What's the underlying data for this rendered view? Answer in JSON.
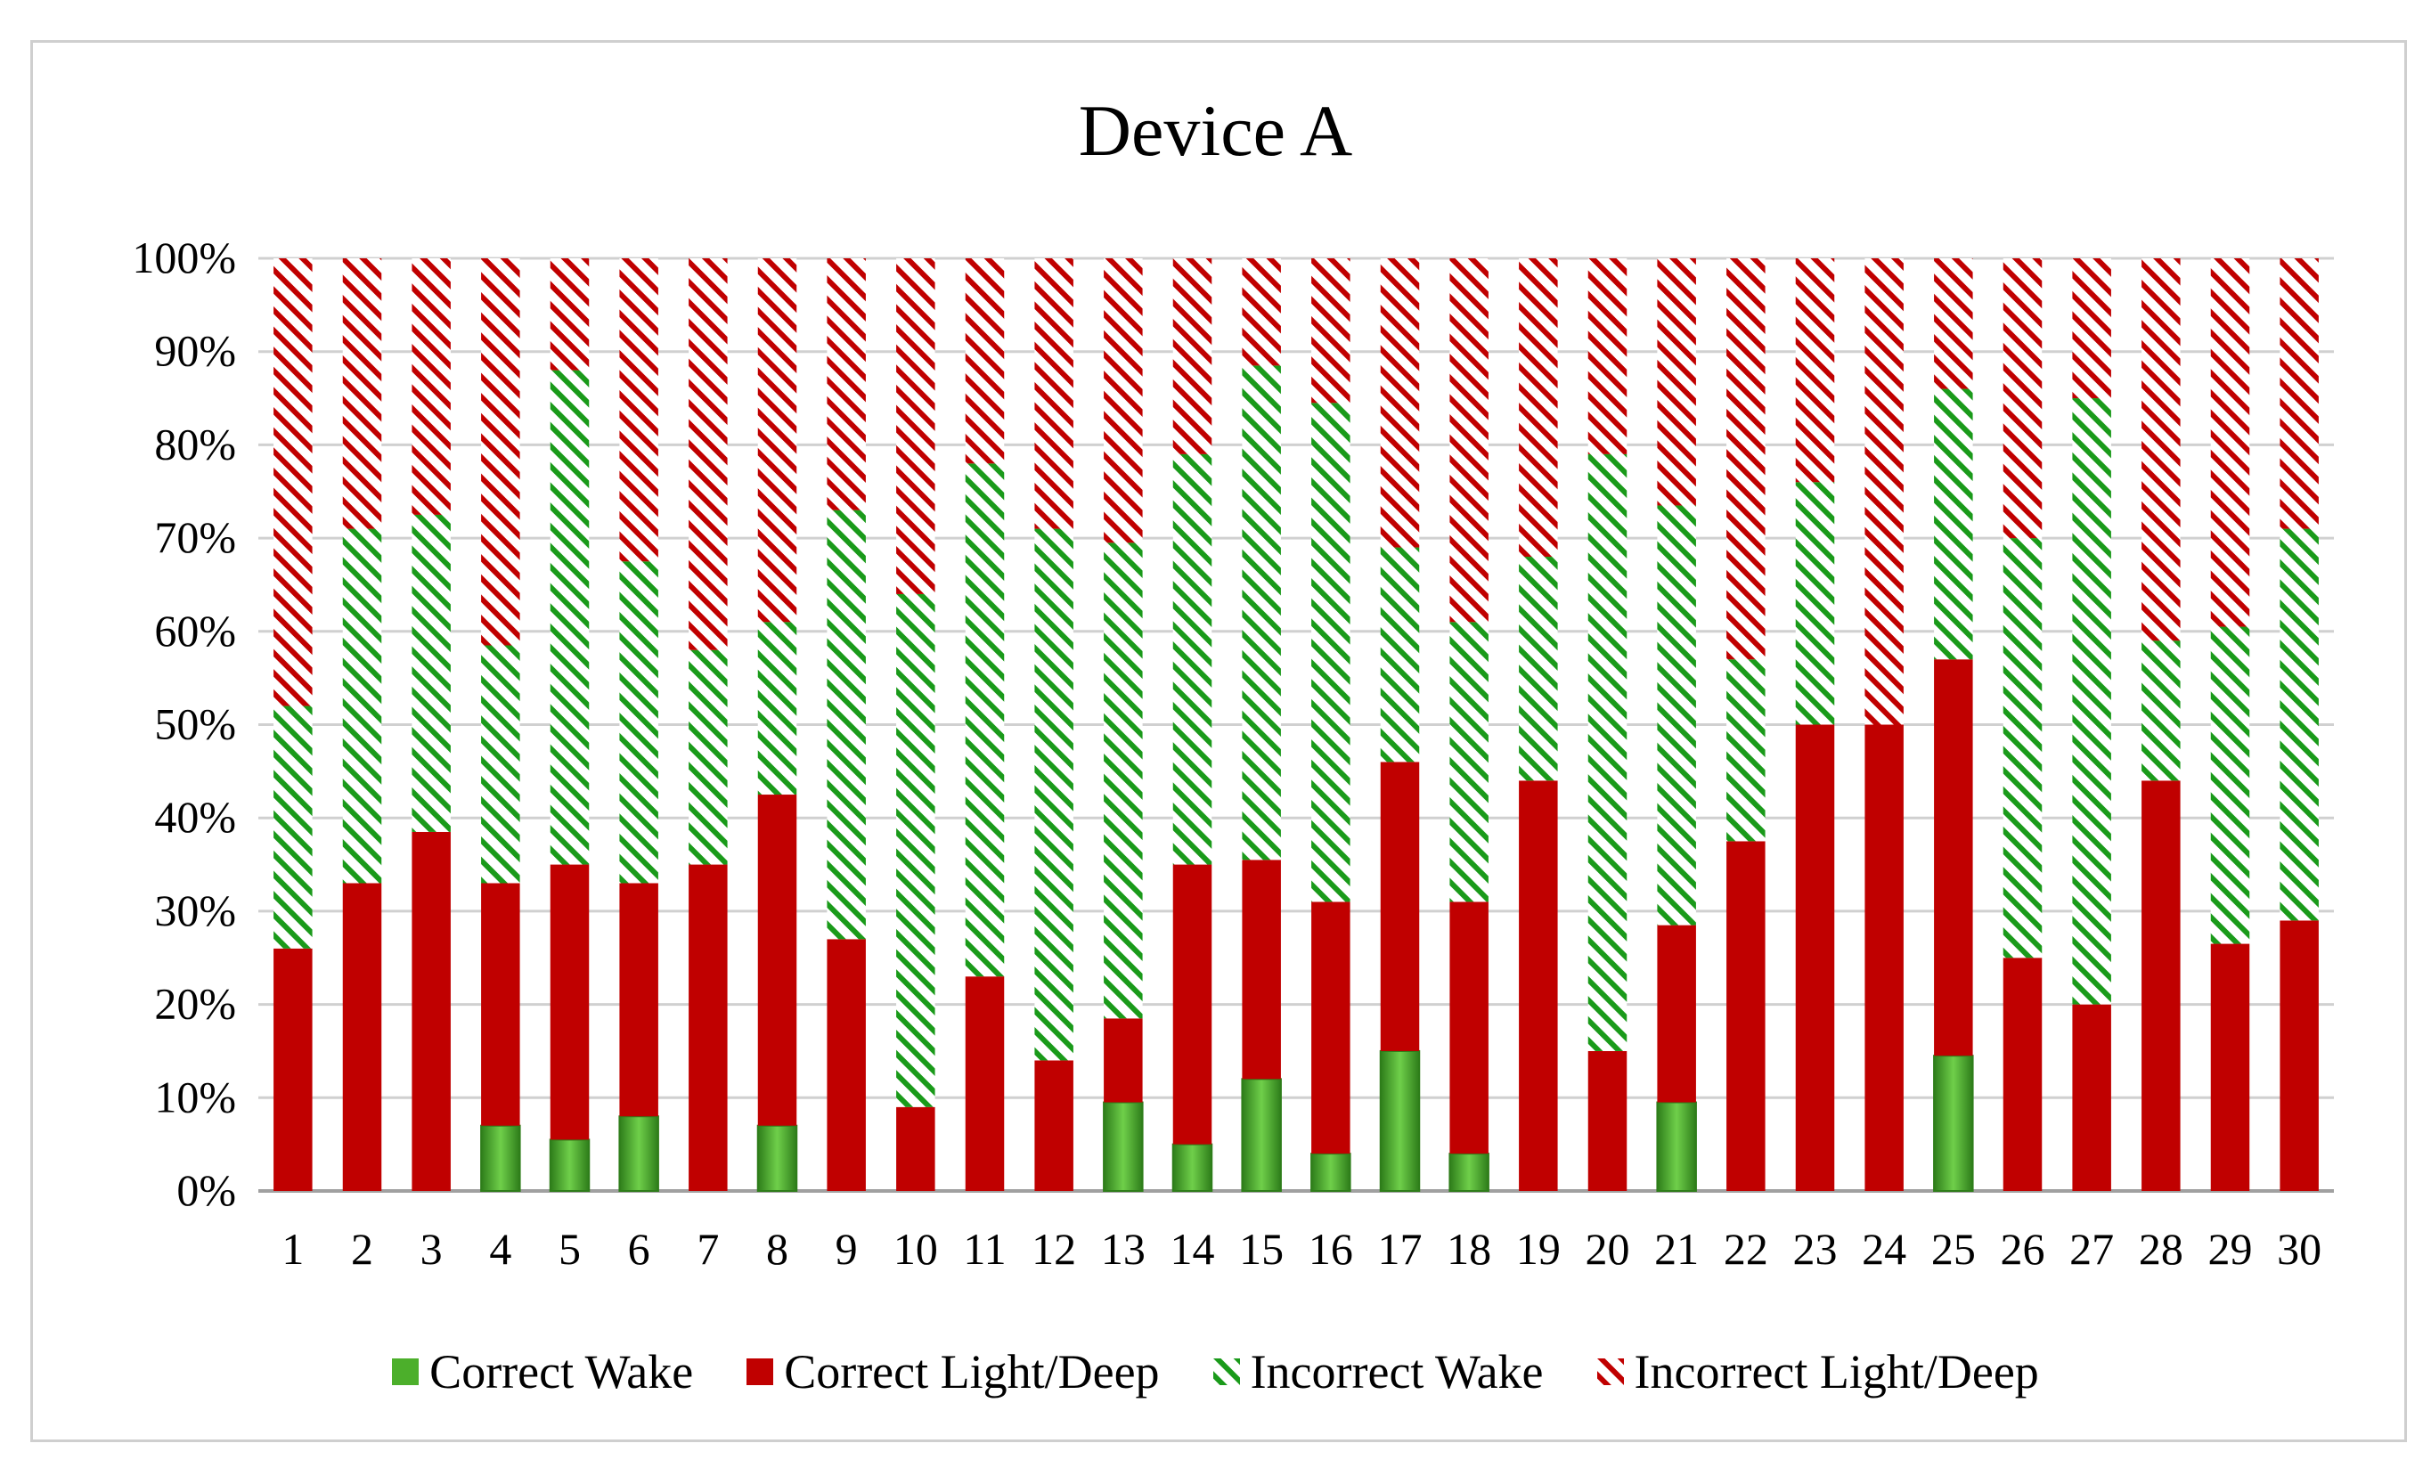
{
  "chart_data": {
    "type": "bar",
    "stacked": true,
    "title": "Device A",
    "xlabel": "",
    "ylabel": "",
    "ylim": [
      0,
      100
    ],
    "y_ticks": [
      "0%",
      "10%",
      "20%",
      "30%",
      "40%",
      "50%",
      "60%",
      "70%",
      "80%",
      "90%",
      "100%"
    ],
    "categories": [
      "1",
      "2",
      "3",
      "4",
      "5",
      "6",
      "7",
      "8",
      "9",
      "10",
      "11",
      "12",
      "13",
      "14",
      "15",
      "16",
      "17",
      "18",
      "19",
      "20",
      "21",
      "22",
      "23",
      "24",
      "25",
      "26",
      "27",
      "28",
      "29",
      "30"
    ],
    "series": [
      {
        "name": "Correct Wake",
        "color": "#4caf2b",
        "pattern": "solid",
        "values": [
          0,
          0,
          0,
          7,
          5.5,
          8,
          0,
          7,
          0,
          0,
          0,
          0,
          9.5,
          5,
          12,
          4,
          15,
          4,
          0,
          0,
          9.5,
          0,
          0,
          0,
          14.5,
          0,
          0,
          0,
          0,
          0
        ]
      },
      {
        "name": "Correct Light/Deep",
        "color": "#c00000",
        "pattern": "solid",
        "values": [
          26,
          33,
          38.5,
          26,
          29.5,
          25,
          35,
          35.5,
          27,
          9,
          23,
          14,
          9,
          30,
          23.5,
          27,
          31,
          27,
          44,
          15,
          19,
          37.5,
          50,
          50,
          42.5,
          25,
          20,
          44,
          26.5,
          29
        ]
      },
      {
        "name": "Incorrect Wake",
        "color": "#1a9a1a",
        "pattern": "hatched",
        "values": [
          26,
          38,
          34,
          25.5,
          53,
          34.5,
          23,
          18.5,
          46,
          55,
          55,
          57,
          51,
          44,
          53,
          53.5,
          23,
          30,
          24,
          64,
          45,
          19.5,
          26,
          0,
          29,
          45,
          65,
          15,
          34,
          42
        ]
      },
      {
        "name": "Incorrect Light/Deep",
        "color": "#c00000",
        "pattern": "hatched",
        "values": [
          48,
          29,
          27.5,
          41.5,
          12,
          32.5,
          42,
          39,
          27,
          36,
          22,
          29,
          30.5,
          21,
          11.5,
          15.5,
          31,
          39,
          32,
          21,
          26.5,
          43,
          24,
          50,
          14,
          30,
          15,
          41,
          39.5,
          29
        ]
      }
    ]
  },
  "legend": {
    "correct_wake": "Correct Wake",
    "correct_light_deep": "Correct Light/Deep",
    "incorrect_wake": "Incorrect Wake",
    "incorrect_light_deep": "Incorrect Light/Deep"
  }
}
